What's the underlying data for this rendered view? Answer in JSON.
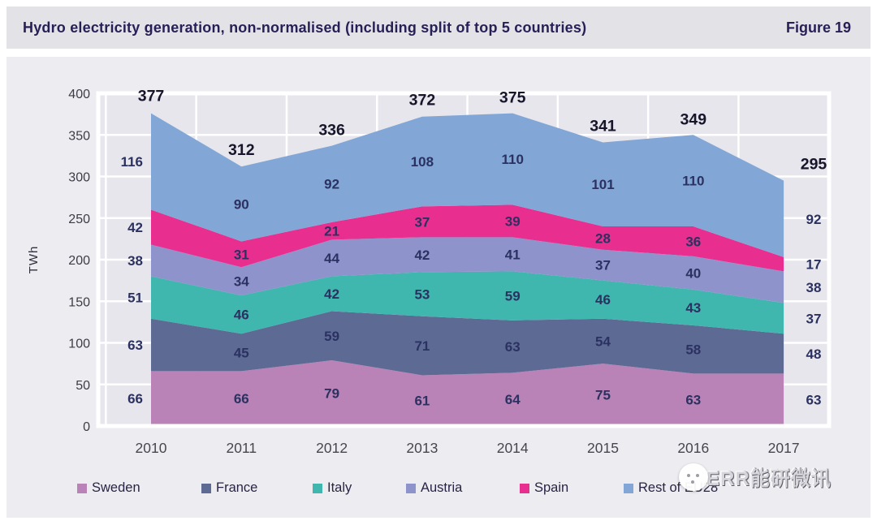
{
  "header": {
    "title": "Hydro electricity generation, non-normalised (including split of top 5 countries)",
    "figure_label": "Figure 19"
  },
  "chart_data": {
    "type": "area",
    "stacked": true,
    "title": "Hydro electricity generation, non-normalised (including split of top 5 countries)",
    "xlabel": "",
    "ylabel": "TWh",
    "ylim": [
      0,
      400
    ],
    "yticks": [
      0,
      50,
      100,
      150,
      200,
      250,
      300,
      350,
      400
    ],
    "grid": true,
    "legend_position": "bottom",
    "x": [
      "2010",
      "2011",
      "2012",
      "2013",
      "2014",
      "2015",
      "2016",
      "2017"
    ],
    "series": [
      {
        "name": "Sweden",
        "color": "#b983b7",
        "values": [
          66,
          66,
          79,
          61,
          64,
          75,
          63,
          63
        ]
      },
      {
        "name": "France",
        "color": "#5d6b94",
        "values": [
          63,
          45,
          59,
          71,
          63,
          54,
          58,
          48
        ]
      },
      {
        "name": "Italy",
        "color": "#3fb6ae",
        "values": [
          51,
          46,
          42,
          53,
          59,
          46,
          43,
          37
        ]
      },
      {
        "name": "Austria",
        "color": "#8f93cb",
        "values": [
          38,
          34,
          44,
          42,
          41,
          37,
          40,
          38
        ]
      },
      {
        "name": "Spain",
        "color": "#e82e8e",
        "values": [
          42,
          31,
          21,
          37,
          39,
          28,
          36,
          17
        ]
      },
      {
        "name": "Rest of EU28",
        "color": "#82a6d6",
        "values": [
          116,
          90,
          92,
          108,
          110,
          101,
          110,
          92
        ]
      }
    ],
    "totals": [
      377,
      312,
      336,
      372,
      375,
      341,
      349,
      295
    ]
  },
  "watermark": {
    "text": "ERR能研微讯",
    "icon": "wechat-logo"
  }
}
